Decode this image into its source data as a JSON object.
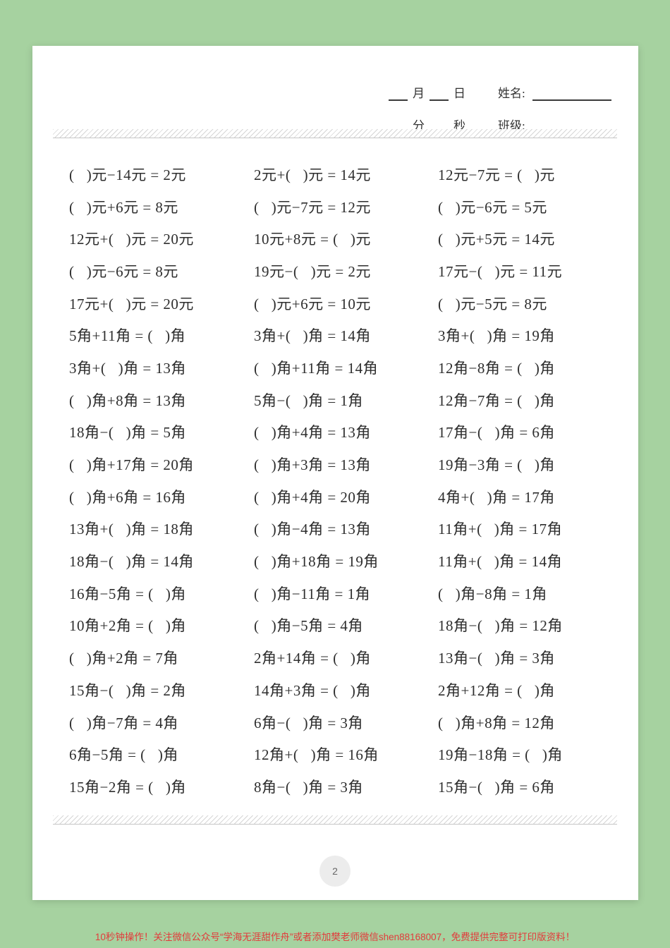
{
  "header": {
    "month_label": "月",
    "day_label": "日",
    "name_label": "姓名:",
    "minute_label": "分",
    "second_label": "秒",
    "class_label": "班级:"
  },
  "problems": {
    "rows": [
      [
        "(   )元−14元 = 2元",
        "2元+(   )元 = 14元",
        "12元−7元 = (   )元"
      ],
      [
        "(   )元+6元 = 8元",
        "(   )元−7元 = 12元",
        "(   )元−6元 = 5元"
      ],
      [
        "12元+(   )元 = 20元",
        "10元+8元 = (   )元",
        "(   )元+5元 = 14元"
      ],
      [
        "(   )元−6元 = 8元",
        "19元−(   )元 = 2元",
        "17元−(   )元 = 11元"
      ],
      [
        "17元+(   )元 = 20元",
        "(   )元+6元 = 10元",
        "(   )元−5元 = 8元"
      ],
      [
        "5角+11角 = (   )角",
        "3角+(   )角 = 14角",
        "3角+(   )角 = 19角"
      ],
      [
        "3角+(   )角 = 13角",
        "(   )角+11角 = 14角",
        "12角−8角 = (   )角"
      ],
      [
        "(   )角+8角 = 13角",
        "5角−(   )角 = 1角",
        "12角−7角 = (   )角"
      ],
      [
        "18角−(   )角 = 5角",
        "(   )角+4角 = 13角",
        "17角−(   )角 = 6角"
      ],
      [
        "(   )角+17角 = 20角",
        "(   )角+3角 = 13角",
        "19角−3角 = (   )角"
      ],
      [
        "(   )角+6角 = 16角",
        "(   )角+4角 = 20角",
        "4角+(   )角 = 17角"
      ],
      [
        "13角+(   )角 = 18角",
        "(   )角−4角 = 13角",
        "11角+(   )角 = 17角"
      ],
      [
        "18角−(   )角 = 14角",
        "(   )角+18角 = 19角",
        "11角+(   )角 = 14角"
      ],
      [
        "16角−5角 = (   )角",
        "(   )角−11角 = 1角",
        "(   )角−8角 = 1角"
      ],
      [
        "10角+2角 = (   )角",
        "(   )角−5角 = 4角",
        "18角−(   )角 = 12角"
      ],
      [
        "(   )角+2角 = 7角",
        "2角+14角 = (   )角",
        "13角−(   )角 = 3角"
      ],
      [
        "15角−(   )角 = 2角",
        "14角+3角 = (   )角",
        "2角+12角 = (   )角"
      ],
      [
        "(   )角−7角 = 4角",
        "6角−(   )角 = 3角",
        "(   )角+8角 = 12角"
      ],
      [
        "6角−5角 = (   )角",
        "12角+(   )角 = 16角",
        "19角−18角 = (   )角"
      ],
      [
        "15角−2角 = (   )角",
        "8角−(   )角 = 3角",
        "15角−(   )角 = 6角"
      ]
    ]
  },
  "page_number": "2",
  "footer_note": "10秒钟操作！关注微信公众号“学海无涯甜作舟”或者添加樊老师微信shen88168007，免费提供完整可打印版资料！",
  "colors": {
    "background_green": "#a6d2a0",
    "paper_white": "#ffffff",
    "text_dark": "#2e2e2e",
    "footer_red": "#e23b3b",
    "page_circle_gray": "#ececec"
  }
}
